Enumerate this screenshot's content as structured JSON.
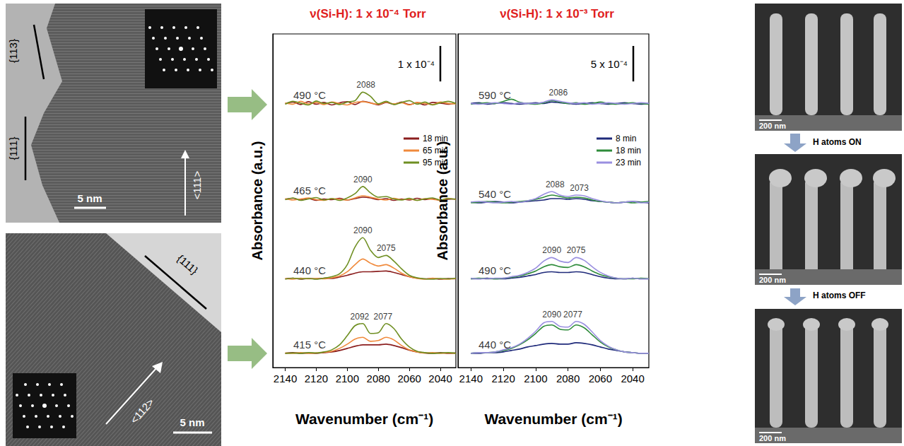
{
  "figure": {
    "tem": [
      {
        "labels": [
          "{113}",
          "{111}",
          "<111>"
        ],
        "scale_bar": "5 nm"
      },
      {
        "labels": [
          "{111}",
          "<112>"
        ],
        "scale_bar": "5 nm"
      }
    ],
    "sem": {
      "scale_bars": [
        "200 nm",
        "200 nm",
        "200 nm"
      ],
      "steps": [
        "H atoms ON",
        "H atoms OFF"
      ]
    }
  },
  "chart_data": [
    {
      "type": "line",
      "title": "ν(Si-H): 1 x 10⁻⁴ Torr",
      "x_label": "Wavenumber (cm⁻¹)",
      "y_label": "Absorbance (a.u.)",
      "x": [
        2140,
        2135,
        2130,
        2125,
        2120,
        2115,
        2110,
        2105,
        2100,
        2095,
        2090,
        2085,
        2080,
        2075,
        2070,
        2065,
        2060,
        2055,
        2050,
        2045,
        2040,
        2035,
        2030
      ],
      "xlim": [
        2030,
        2148
      ],
      "xticks": [
        2040,
        2060,
        2080,
        2100,
        2120,
        2140
      ],
      "ylim": [
        0,
        9.4
      ],
      "tick_labels": "x",
      "grid": false,
      "legend": "upper right",
      "scale_bar": {
        "value": 1,
        "label": "1 x 10⁻⁴"
      },
      "groups": [
        {
          "label": "490 °C",
          "peaks": [
            2088
          ],
          "series": [
            {
              "name": "18 min",
              "color": "#8b1e1e",
              "values": [
                7.44,
                7.48,
                7.41,
                7.49,
                7.42,
                7.47,
                7.4,
                7.46,
                7.49,
                7.41,
                7.5,
                7.46,
                7.4,
                7.47,
                7.42,
                7.48,
                7.41,
                7.46,
                7.4,
                7.47,
                7.45,
                7.42,
                7.46
              ]
            },
            {
              "name": "65 min",
              "color": "#f08a3c",
              "values": [
                7.46,
                7.42,
                7.5,
                7.43,
                7.47,
                7.41,
                7.48,
                7.44,
                7.4,
                7.47,
                7.49,
                7.45,
                7.42,
                7.48,
                7.43,
                7.46,
                7.4,
                7.47,
                7.44,
                7.41,
                7.48,
                7.44,
                7.43
              ]
            },
            {
              "name": "95 min",
              "color": "#6f8f22",
              "values": [
                7.42,
                7.5,
                7.45,
                7.4,
                7.51,
                7.44,
                7.47,
                7.41,
                7.48,
                7.52,
                7.76,
                7.64,
                7.43,
                7.5,
                7.41,
                7.47,
                7.52,
                7.42,
                7.48,
                7.4,
                7.46,
                7.5,
                7.44
              ]
            }
          ]
        },
        {
          "label": "465 °C",
          "peaks": [
            2090
          ],
          "series": [
            {
              "name": "18 min",
              "color": "#8b1e1e",
              "values": [
                4.74,
                4.77,
                4.72,
                4.76,
                4.71,
                4.75,
                4.73,
                4.77,
                4.72,
                4.76,
                4.8,
                4.78,
                4.73,
                4.76,
                4.71,
                4.75,
                4.72,
                4.77,
                4.73,
                4.76,
                4.71,
                4.74,
                4.75
              ]
            },
            {
              "name": "65 min",
              "color": "#f08a3c",
              "values": [
                4.76,
                4.72,
                4.75,
                4.78,
                4.73,
                4.71,
                4.76,
                4.74,
                4.72,
                4.78,
                4.84,
                4.8,
                4.75,
                4.72,
                4.77,
                4.73,
                4.75,
                4.71,
                4.76,
                4.74,
                4.72,
                4.77,
                4.73
              ]
            },
            {
              "name": "95 min",
              "color": "#6f8f22",
              "values": [
                4.73,
                4.78,
                4.71,
                4.75,
                4.79,
                4.72,
                4.76,
                4.71,
                4.78,
                4.9,
                5.1,
                4.92,
                4.8,
                4.82,
                4.75,
                4.72,
                4.77,
                4.71,
                4.75,
                4.78,
                4.72,
                4.76,
                4.74
              ]
            }
          ]
        },
        {
          "label": "440 °C",
          "peaks": [
            2090,
            2075
          ],
          "series": [
            {
              "name": "18 min",
              "color": "#8b1e1e",
              "values": [
                2.5,
                2.52,
                2.49,
                2.51,
                2.5,
                2.52,
                2.51,
                2.55,
                2.6,
                2.66,
                2.7,
                2.7,
                2.71,
                2.72,
                2.68,
                2.62,
                2.56,
                2.52,
                2.5,
                2.51,
                2.49,
                2.51,
                2.5
              ]
            },
            {
              "name": "65 min",
              "color": "#f08a3c",
              "values": [
                2.51,
                2.49,
                2.52,
                2.5,
                2.51,
                2.5,
                2.53,
                2.58,
                2.7,
                2.9,
                3.06,
                2.94,
                2.86,
                2.9,
                2.8,
                2.66,
                2.56,
                2.51,
                2.49,
                2.52,
                2.5,
                2.49,
                2.51
              ]
            },
            {
              "name": "95 min",
              "color": "#6f8f22",
              "values": [
                2.49,
                2.52,
                2.5,
                2.51,
                2.49,
                2.52,
                2.56,
                2.64,
                2.9,
                3.4,
                3.66,
                3.3,
                3.1,
                3.16,
                3.0,
                2.78,
                2.6,
                2.53,
                2.5,
                2.49,
                2.51,
                2.5,
                2.52
              ]
            }
          ]
        },
        {
          "label": "415 °C",
          "peaks": [
            2092,
            2077
          ],
          "series": [
            {
              "name": "18 min",
              "color": "#8b1e1e",
              "values": [
                0.4,
                0.42,
                0.4,
                0.41,
                0.4,
                0.42,
                0.44,
                0.48,
                0.54,
                0.6,
                0.64,
                0.64,
                0.64,
                0.66,
                0.62,
                0.56,
                0.49,
                0.44,
                0.41,
                0.4,
                0.42,
                0.4,
                0.41
              ]
            },
            {
              "name": "65 min",
              "color": "#f08a3c",
              "values": [
                0.41,
                0.4,
                0.42,
                0.4,
                0.41,
                0.43,
                0.46,
                0.54,
                0.66,
                0.8,
                0.85,
                0.74,
                0.76,
                0.85,
                0.78,
                0.62,
                0.5,
                0.44,
                0.41,
                0.42,
                0.4,
                0.41,
                0.4
              ]
            },
            {
              "name": "95 min",
              "color": "#6f8f22",
              "values": [
                0.4,
                0.41,
                0.4,
                0.42,
                0.41,
                0.44,
                0.5,
                0.64,
                0.9,
                1.18,
                1.24,
                0.96,
                0.98,
                1.24,
                1.1,
                0.8,
                0.58,
                0.46,
                0.42,
                0.4,
                0.41,
                0.42,
                0.4
              ]
            }
          ]
        }
      ]
    },
    {
      "type": "line",
      "title": "ν(Si-H): 1 x 10⁻³ Torr",
      "x_label": "Wavenumber (cm⁻¹)",
      "y_label": "Absorbance (a.u.)",
      "x": [
        2140,
        2135,
        2130,
        2125,
        2120,
        2115,
        2110,
        2105,
        2100,
        2095,
        2090,
        2085,
        2080,
        2075,
        2070,
        2065,
        2060,
        2055,
        2050,
        2045,
        2040,
        2035,
        2030
      ],
      "xlim": [
        2030,
        2148
      ],
      "xticks": [
        2040,
        2060,
        2080,
        2100,
        2120,
        2140
      ],
      "ylim": [
        0,
        47
      ],
      "tick_labels": "x",
      "grid": false,
      "legend": "upper right",
      "scale_bar": {
        "value": 5,
        "label": "5 x 10⁻⁴"
      },
      "groups": [
        {
          "label": "590 °C",
          "peaks": [
            2086
          ],
          "series": [
            {
              "name": "8 min",
              "color": "#1f2a7a",
              "values": [
                37.2,
                37.3,
                37.1,
                37.2,
                37.3,
                37.2,
                37.1,
                37.2,
                37.3,
                37.2,
                37.4,
                37.3,
                37.2,
                37.1,
                37.2,
                37.3,
                37.2,
                37.1,
                37.2,
                37.3,
                37.2,
                37.1,
                37.2
              ]
            },
            {
              "name": "18 min",
              "color": "#2e8b3a",
              "values": [
                37.1,
                37.2,
                37.3,
                37.2,
                37.5,
                37.8,
                37.4,
                37.2,
                37.1,
                37.3,
                37.6,
                37.4,
                37.2,
                37.3,
                37.1,
                37.2,
                37.4,
                37.2,
                37.1,
                37.2,
                37.3,
                37.2,
                37.1
              ]
            },
            {
              "name": "23 min",
              "color": "#9a8fe0",
              "values": [
                37.2,
                37.1,
                37.2,
                37.3,
                37.2,
                37.1,
                37.3,
                37.2,
                37.2,
                37.4,
                37.7,
                37.5,
                37.3,
                37.2,
                37.3,
                37.1,
                37.2,
                37.3,
                37.2,
                37.1,
                37.2,
                37.3,
                37.2
              ]
            }
          ]
        },
        {
          "label": "540 °C",
          "peaks": [
            2088,
            2073
          ],
          "series": [
            {
              "name": "8 min",
              "color": "#1f2a7a",
              "values": [
                23.3,
                23.2,
                23.3,
                23.4,
                23.3,
                23.2,
                23.3,
                23.4,
                23.5,
                23.6,
                23.8,
                23.8,
                23.7,
                23.8,
                23.7,
                23.5,
                23.4,
                23.3,
                23.2,
                23.3,
                23.4,
                23.3,
                23.2
              ]
            },
            {
              "name": "18 min",
              "color": "#2e8b3a",
              "values": [
                23.2,
                23.3,
                23.4,
                23.3,
                23.2,
                23.3,
                23.4,
                23.5,
                23.7,
                24.0,
                24.3,
                24.1,
                23.9,
                24.0,
                23.9,
                23.6,
                23.4,
                23.3,
                23.2,
                23.3,
                23.2,
                23.3,
                23.4
              ]
            },
            {
              "name": "23 min",
              "color": "#9a8fe0",
              "values": [
                23.3,
                23.4,
                23.3,
                23.2,
                23.3,
                23.4,
                23.3,
                23.5,
                23.8,
                24.4,
                24.8,
                24.3,
                24.1,
                24.3,
                24.2,
                23.8,
                23.5,
                23.3,
                23.2,
                23.3,
                23.4,
                23.2,
                23.3
              ]
            }
          ]
        },
        {
          "label": "490 °C",
          "peaks": [
            2090,
            2075
          ],
          "series": [
            {
              "name": "8 min",
              "color": "#1f2a7a",
              "values": [
                12.5,
                12.5,
                12.6,
                12.5,
                12.5,
                12.6,
                12.7,
                12.9,
                13.1,
                13.4,
                13.5,
                13.4,
                13.4,
                13.5,
                13.4,
                13.1,
                12.8,
                12.6,
                12.5,
                12.5,
                12.6,
                12.5,
                12.5
              ]
            },
            {
              "name": "18 min",
              "color": "#2e8b3a",
              "values": [
                12.5,
                12.6,
                12.5,
                12.5,
                12.6,
                12.7,
                12.9,
                13.2,
                13.6,
                14.2,
                14.5,
                14.2,
                14.1,
                14.5,
                14.2,
                13.6,
                13.1,
                12.8,
                12.6,
                12.5,
                12.5,
                12.6,
                12.5
              ]
            },
            {
              "name": "23 min",
              "color": "#9a8fe0",
              "values": [
                12.6,
                12.5,
                12.5,
                12.6,
                12.6,
                12.8,
                13.0,
                13.4,
                14.0,
                15.0,
                15.5,
                15.0,
                14.8,
                15.5,
                15.1,
                14.2,
                13.4,
                12.9,
                12.6,
                12.5,
                12.6,
                12.5,
                12.5
              ]
            }
          ]
        },
        {
          "label": "440 °C",
          "peaks": [
            2090,
            2077
          ],
          "series": [
            {
              "name": "8 min",
              "color": "#1f2a7a",
              "values": [
                2.0,
                2.0,
                2.1,
                2.1,
                2.2,
                2.4,
                2.6,
                2.9,
                3.1,
                3.3,
                3.4,
                3.3,
                3.3,
                3.5,
                3.4,
                3.2,
                2.9,
                2.6,
                2.4,
                2.2,
                2.1,
                2.0,
                2.0
              ]
            },
            {
              "name": "18 min",
              "color": "#2e8b3a",
              "values": [
                2.0,
                2.1,
                2.1,
                2.2,
                2.4,
                2.7,
                3.2,
                3.9,
                4.8,
                5.8,
                6.0,
                5.4,
                5.3,
                6.0,
                5.6,
                4.6,
                3.6,
                2.9,
                2.5,
                2.2,
                2.1,
                2.0,
                2.0
              ]
            },
            {
              "name": "23 min",
              "color": "#9a8fe0",
              "values": [
                2.0,
                2.1,
                2.1,
                2.2,
                2.5,
                2.8,
                3.3,
                4.1,
                5.1,
                6.3,
                6.5,
                5.8,
                5.7,
                6.5,
                6.1,
                5.0,
                3.8,
                3.0,
                2.5,
                2.2,
                2.1,
                2.0,
                2.0
              ]
            }
          ]
        }
      ]
    }
  ]
}
